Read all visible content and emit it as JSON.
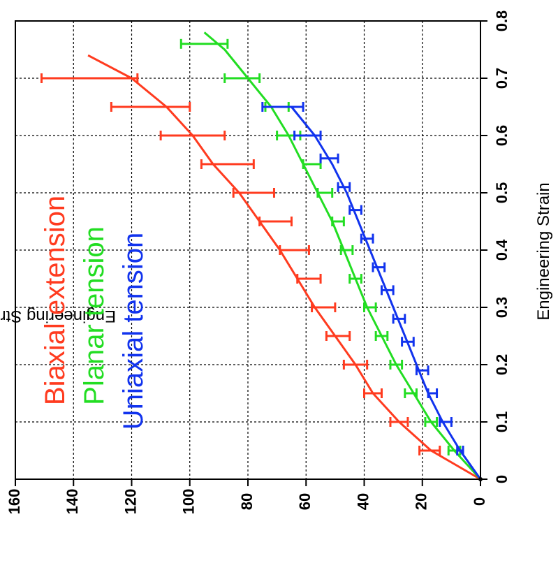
{
  "chart_data": {
    "type": "line",
    "orientation": "rotated-90-clockwise",
    "xlabel": "Engineering Strain",
    "ylabel": "Engineering Stress (psi)",
    "xlim": [
      0,
      0.8
    ],
    "ylim": [
      0,
      160
    ],
    "x_ticks": [
      "0",
      "0.1",
      "0.2",
      "0.3",
      "0.4",
      "0.5",
      "0.6",
      "0.7",
      "0.8"
    ],
    "y_ticks": [
      "0",
      "20",
      "40",
      "60",
      "80",
      "100",
      "120",
      "140",
      "160"
    ],
    "grid": true,
    "legend_placement": "text annotations near top-left",
    "series": [
      {
        "name": "Biaxial extension",
        "color": "#ff3b1f",
        "curve": [
          [
            0,
            0
          ],
          [
            0.05,
            17
          ],
          [
            0.1,
            28
          ],
          [
            0.15,
            37
          ],
          [
            0.2,
            43
          ],
          [
            0.25,
            50
          ],
          [
            0.3,
            57
          ],
          [
            0.35,
            63
          ],
          [
            0.4,
            69
          ],
          [
            0.45,
            76
          ],
          [
            0.5,
            83
          ],
          [
            0.55,
            92
          ],
          [
            0.6,
            99
          ],
          [
            0.65,
            108
          ],
          [
            0.7,
            120
          ],
          [
            0.74,
            135
          ]
        ],
        "error_bars": [
          {
            "x": 0.05,
            "y": 17,
            "lo": 14,
            "hi": 21
          },
          {
            "x": 0.1,
            "y": 28,
            "lo": 25,
            "hi": 31
          },
          {
            "x": 0.15,
            "y": 37,
            "lo": 34,
            "hi": 40
          },
          {
            "x": 0.2,
            "y": 43,
            "lo": 39,
            "hi": 47
          },
          {
            "x": 0.25,
            "y": 49,
            "lo": 45,
            "hi": 53
          },
          {
            "x": 0.3,
            "y": 54,
            "lo": 50,
            "hi": 58
          },
          {
            "x": 0.35,
            "y": 59,
            "lo": 55,
            "hi": 63
          },
          {
            "x": 0.4,
            "y": 64,
            "lo": 59,
            "hi": 69
          },
          {
            "x": 0.45,
            "y": 70,
            "lo": 65,
            "hi": 76
          },
          {
            "x": 0.5,
            "y": 78,
            "lo": 71,
            "hi": 85
          },
          {
            "x": 0.55,
            "y": 87,
            "lo": 78,
            "hi": 96
          },
          {
            "x": 0.6,
            "y": 99,
            "lo": 88,
            "hi": 110
          },
          {
            "x": 0.65,
            "y": 113,
            "lo": 100,
            "hi": 127
          },
          {
            "x": 0.7,
            "y": 135,
            "lo": 118,
            "hi": 151
          }
        ]
      },
      {
        "name": "Planar tension",
        "color": "#22dd22",
        "curve": [
          [
            0,
            0
          ],
          [
            0.05,
            9
          ],
          [
            0.1,
            17
          ],
          [
            0.15,
            23
          ],
          [
            0.2,
            29
          ],
          [
            0.25,
            34
          ],
          [
            0.3,
            39
          ],
          [
            0.35,
            43
          ],
          [
            0.4,
            47
          ],
          [
            0.45,
            51
          ],
          [
            0.5,
            56
          ],
          [
            0.55,
            61
          ],
          [
            0.6,
            66
          ],
          [
            0.65,
            72
          ],
          [
            0.7,
            80
          ],
          [
            0.75,
            88
          ],
          [
            0.78,
            95
          ]
        ],
        "error_bars": [
          {
            "x": 0.05,
            "y": 9,
            "lo": 7,
            "hi": 11
          },
          {
            "x": 0.1,
            "y": 17,
            "lo": 15,
            "hi": 19
          },
          {
            "x": 0.15,
            "y": 24,
            "lo": 22,
            "hi": 26
          },
          {
            "x": 0.2,
            "y": 29,
            "lo": 27,
            "hi": 31
          },
          {
            "x": 0.25,
            "y": 34,
            "lo": 32,
            "hi": 36
          },
          {
            "x": 0.3,
            "y": 38,
            "lo": 36,
            "hi": 40
          },
          {
            "x": 0.35,
            "y": 43,
            "lo": 41,
            "hi": 45
          },
          {
            "x": 0.4,
            "y": 46,
            "lo": 44,
            "hi": 48
          },
          {
            "x": 0.45,
            "y": 49,
            "lo": 47,
            "hi": 51
          },
          {
            "x": 0.5,
            "y": 53,
            "lo": 51,
            "hi": 56
          },
          {
            "x": 0.55,
            "y": 58,
            "lo": 55,
            "hi": 61
          },
          {
            "x": 0.6,
            "y": 66,
            "lo": 62,
            "hi": 70
          },
          {
            "x": 0.65,
            "y": 70,
            "lo": 66,
            "hi": 74
          },
          {
            "x": 0.7,
            "y": 82,
            "lo": 76,
            "hi": 88
          },
          {
            "x": 0.76,
            "y": 95,
            "lo": 87,
            "hi": 103
          }
        ]
      },
      {
        "name": "Uniaxial tension",
        "color": "#1133ee",
        "curve": [
          [
            0,
            0
          ],
          [
            0.05,
            7
          ],
          [
            0.1,
            13
          ],
          [
            0.15,
            18
          ],
          [
            0.2,
            22
          ],
          [
            0.25,
            26
          ],
          [
            0.3,
            30
          ],
          [
            0.35,
            34
          ],
          [
            0.4,
            38
          ],
          [
            0.45,
            42
          ],
          [
            0.5,
            46
          ],
          [
            0.55,
            51
          ],
          [
            0.6,
            57
          ],
          [
            0.65,
            65
          ]
        ],
        "error_bars": [
          {
            "x": 0.05,
            "y": 7,
            "lo": 6,
            "hi": 8
          },
          {
            "x": 0.1,
            "y": 12,
            "lo": 10,
            "hi": 14
          },
          {
            "x": 0.15,
            "y": 17,
            "lo": 15,
            "hi": 18
          },
          {
            "x": 0.19,
            "y": 20,
            "lo": 18,
            "hi": 22
          },
          {
            "x": 0.24,
            "y": 25,
            "lo": 23,
            "hi": 27
          },
          {
            "x": 0.28,
            "y": 28,
            "lo": 26,
            "hi": 30
          },
          {
            "x": 0.33,
            "y": 32,
            "lo": 30,
            "hi": 34
          },
          {
            "x": 0.37,
            "y": 35,
            "lo": 33,
            "hi": 37
          },
          {
            "x": 0.42,
            "y": 39,
            "lo": 37,
            "hi": 41
          },
          {
            "x": 0.47,
            "y": 43,
            "lo": 41,
            "hi": 45
          },
          {
            "x": 0.51,
            "y": 47,
            "lo": 45,
            "hi": 49
          },
          {
            "x": 0.56,
            "y": 52,
            "lo": 49,
            "hi": 55
          },
          {
            "x": 0.6,
            "y": 59,
            "lo": 55,
            "hi": 64
          },
          {
            "x": 0.65,
            "y": 68,
            "lo": 61,
            "hi": 75
          }
        ]
      }
    ]
  }
}
